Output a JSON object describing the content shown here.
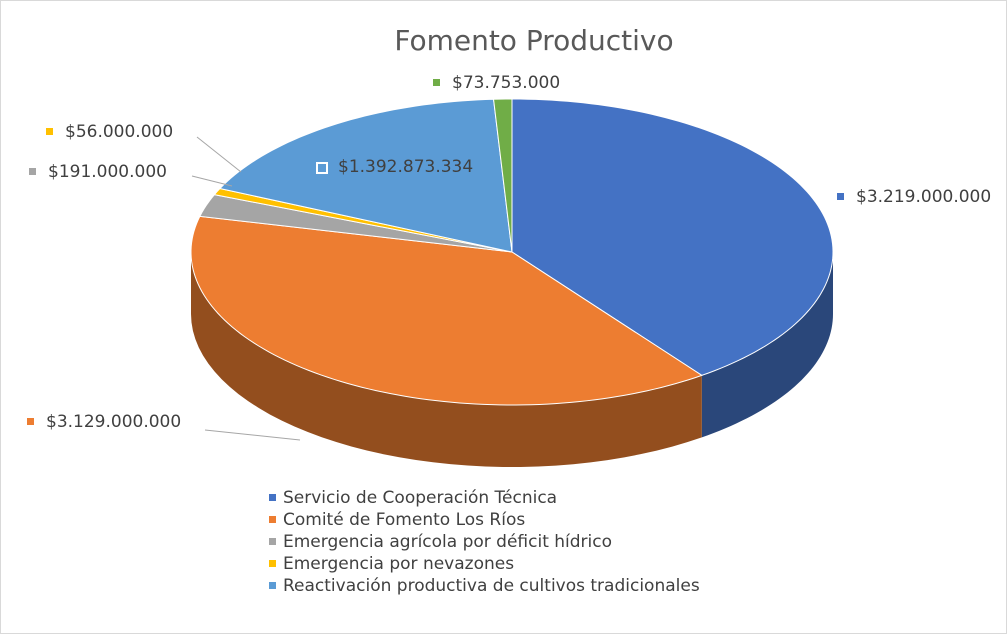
{
  "chart_data": {
    "type": "pie",
    "title": "Fomento Productivo",
    "categories": [
      "Servicio de Cooperación Técnica",
      "Comité de Fomento Los Ríos",
      "Emergencia agrícola por déficit hídrico",
      "Emergencia por nevazones",
      "Reactivación productiva de cultivos tradicionales",
      null
    ],
    "values": [
      3219000000,
      3129000000,
      191000000,
      56000000,
      1392873334,
      73753000
    ],
    "value_labels": [
      "$3.219.000.000",
      "$3.129.000.000",
      "$191.000.000",
      "$56.000.000",
      "$1.392.873.334",
      "$73.753.000"
    ],
    "colors": [
      "#4472c4",
      "#ed7d31",
      "#a5a5a5",
      "#ffc000",
      "#5b9bd5",
      "#70ad47"
    ],
    "legend": "bottom"
  }
}
